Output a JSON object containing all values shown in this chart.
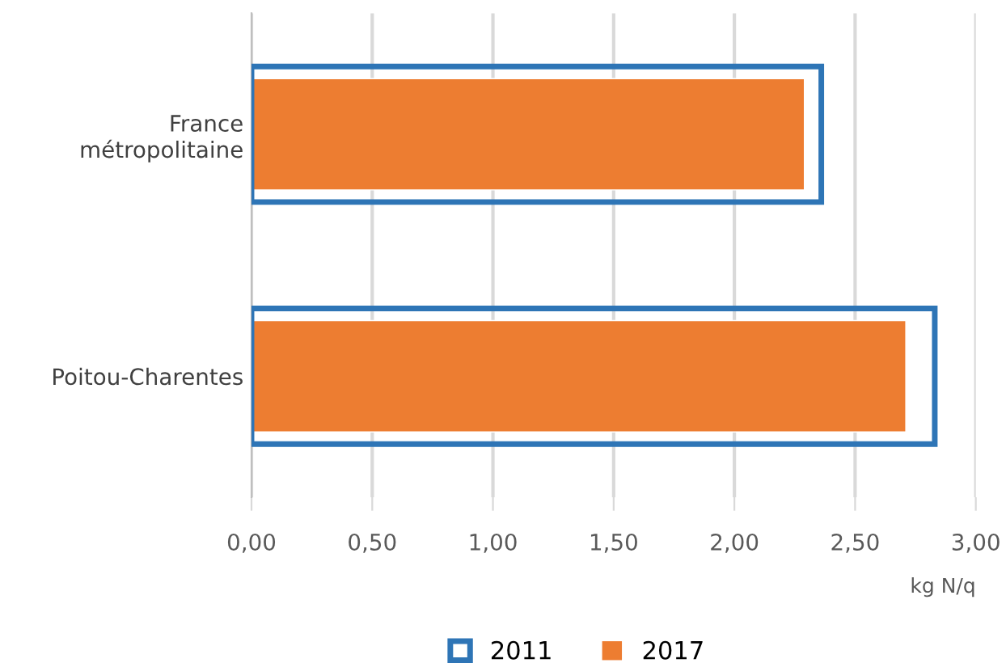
{
  "chart_data": {
    "type": "bar",
    "orientation": "horizontal",
    "xlabel": "kg N/q",
    "categories": [
      "France\nmétropolitaine",
      "Poitou-Charentes"
    ],
    "series": [
      {
        "name": "2011",
        "color": "#2e75b6",
        "values": [
          2.36,
          2.83
        ]
      },
      {
        "name": "2017",
        "color": "#ed7d31",
        "values": [
          2.29,
          2.71
        ]
      }
    ],
    "xlim": [
      0,
      3
    ],
    "xticks": [
      {
        "value": 0,
        "label": "0,00"
      },
      {
        "value": 0.5,
        "label": "0,50"
      },
      {
        "value": 1,
        "label": "1,00"
      },
      {
        "value": 1.5,
        "label": "1,50"
      },
      {
        "value": 2,
        "label": "2,00"
      },
      {
        "value": 2.5,
        "label": "2,50"
      },
      {
        "value": 3,
        "label": "3,00"
      }
    ],
    "grid": "x",
    "legend": "bottom"
  }
}
